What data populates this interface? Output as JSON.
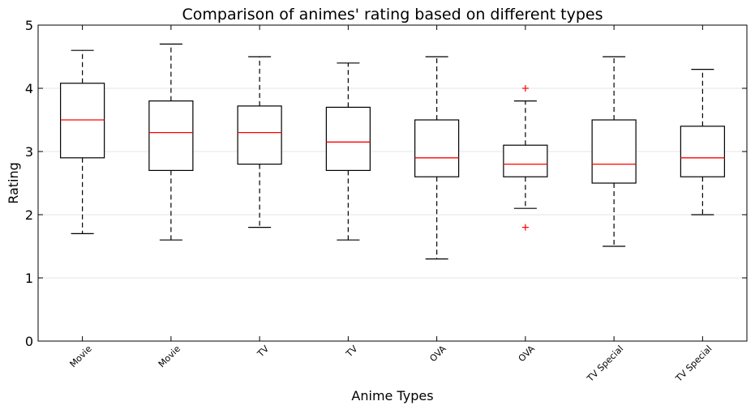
{
  "chart_data": {
    "type": "box",
    "title": "Comparison of animes' rating based on different types",
    "xlabel": "Anime Types",
    "ylabel": "Rating",
    "ylim": [
      0,
      5
    ],
    "yticks": [
      0,
      1,
      2,
      3,
      4,
      5
    ],
    "grid": "horizontal",
    "colors": {
      "box": "#000000",
      "median": "#ff0000",
      "outlier": "#ff0000",
      "grid": "#e6e6e6"
    },
    "categories": [
      "Movie",
      "Movie",
      "TV",
      "TV",
      "OVA",
      "OVA",
      "TV Special",
      "TV Special"
    ],
    "boxes": [
      {
        "whisker_low": 1.7,
        "q1": 2.9,
        "median": 3.5,
        "q3": 4.08,
        "whisker_high": 4.6,
        "outliers": []
      },
      {
        "whisker_low": 1.6,
        "q1": 2.7,
        "median": 3.3,
        "q3": 3.8,
        "whisker_high": 4.7,
        "outliers": []
      },
      {
        "whisker_low": 1.8,
        "q1": 2.8,
        "median": 3.3,
        "q3": 3.72,
        "whisker_high": 4.5,
        "outliers": []
      },
      {
        "whisker_low": 1.6,
        "q1": 2.7,
        "median": 3.15,
        "q3": 3.7,
        "whisker_high": 4.4,
        "outliers": []
      },
      {
        "whisker_low": 1.3,
        "q1": 2.6,
        "median": 2.9,
        "q3": 3.5,
        "whisker_high": 4.5,
        "outliers": []
      },
      {
        "whisker_low": 2.1,
        "q1": 2.6,
        "median": 2.8,
        "q3": 3.1,
        "whisker_high": 3.8,
        "outliers": [
          4.0,
          1.8
        ]
      },
      {
        "whisker_low": 1.5,
        "q1": 2.5,
        "median": 2.8,
        "q3": 3.5,
        "whisker_high": 4.5,
        "outliers": []
      },
      {
        "whisker_low": 2.0,
        "q1": 2.6,
        "median": 2.9,
        "q3": 3.4,
        "whisker_high": 4.3,
        "outliers": []
      }
    ]
  }
}
